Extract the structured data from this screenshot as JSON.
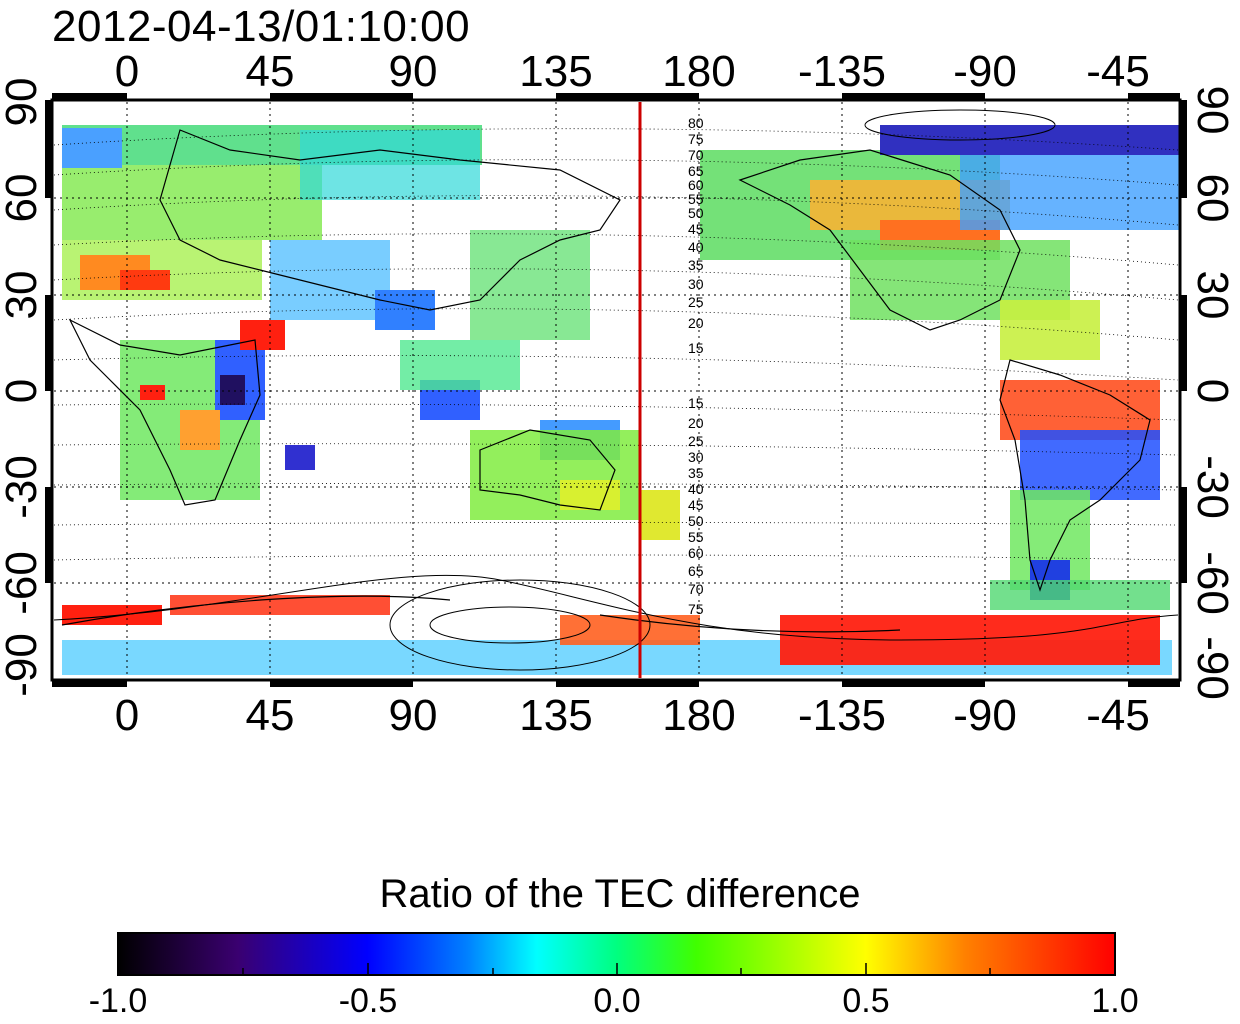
{
  "timestamp": "2012-04-13/01:10:00",
  "map": {
    "lon_ticks": [
      "0",
      "45",
      "90",
      "135",
      "180",
      "-135",
      "-90",
      "-45"
    ],
    "lat_ticks": [
      "90",
      "60",
      "30",
      "0",
      "-30",
      "-60",
      "-90"
    ],
    "contour_labels_north": [
      "80",
      "75",
      "70",
      "65",
      "60",
      "55",
      "50",
      "45",
      "40",
      "35",
      "30",
      "25",
      "20",
      "15"
    ],
    "contour_labels_south": [
      "15",
      "20",
      "25",
      "30",
      "35",
      "40",
      "45",
      "50",
      "55",
      "60",
      "65",
      "70",
      "75"
    ],
    "highlight_meridian_color": "#cc0000"
  },
  "colorbar": {
    "title": "Ratio of the TEC difference",
    "ticks": [
      "-1.0",
      "-0.5",
      "0.0",
      "0.5",
      "1.0"
    ],
    "range": [
      -1.0,
      1.0
    ],
    "colors": [
      "#000000",
      "#3a0070",
      "#0000ff",
      "#0080ff",
      "#00ffff",
      "#00ff80",
      "#00ff00",
      "#80ff00",
      "#ffff00",
      "#ff8000",
      "#ff0000"
    ]
  }
}
